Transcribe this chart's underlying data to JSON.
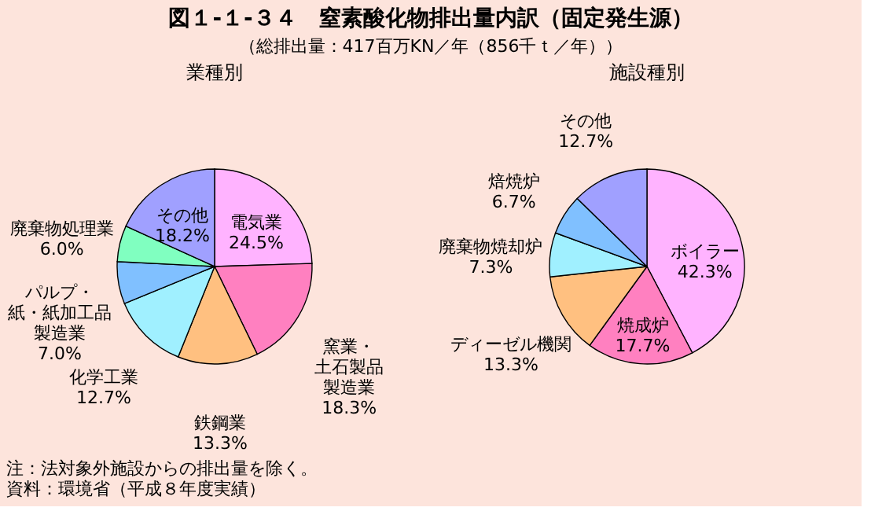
{
  "chart_data": [
    {
      "type": "other",
      "title": "図１-１-３４　窒素酸化物排出量内訳（固定発生源）",
      "subtitle": "（総排出量：417百万KN／年（856千ｔ／年））",
      "annotations": [
        "注：法対象外施設からの排出量を除く。",
        "資料：環境省（平成８年度実績）"
      ]
    },
    {
      "type": "pie",
      "title": "業種別",
      "categories": [
        "電気業",
        "窯業・土石製品製造業",
        "鉄鋼業",
        "化学工業",
        "パルプ・紙・紙加工品製造業",
        "廃棄物処理業",
        "その他"
      ],
      "values": [
        24.5,
        18.3,
        13.3,
        12.7,
        7.0,
        6.0,
        18.2
      ],
      "value_labels": [
        "24.5%",
        "18.3%",
        "13.3%",
        "12.7%",
        "7.0%",
        "6.0%",
        "18.2%"
      ],
      "colors": [
        "#ffb3ff",
        "#ff80c0",
        "#ffc080",
        "#a0f0ff",
        "#80c0ff",
        "#80ffc0",
        "#a0a0ff"
      ]
    },
    {
      "type": "pie",
      "title": "施設種別",
      "categories": [
        "ボイラー",
        "焼成炉",
        "ディーゼル機関",
        "廃棄物焼却炉",
        "焙焼炉",
        "その他"
      ],
      "values": [
        42.3,
        17.7,
        13.3,
        7.3,
        6.7,
        12.7
      ],
      "value_labels": [
        "42.3%",
        "17.7%",
        "13.3%",
        "7.3%",
        "6.7%",
        "12.7%"
      ],
      "colors": [
        "#ffb3ff",
        "#ff80c0",
        "#ffc080",
        "#a0f0ff",
        "#80c0ff",
        "#a0a0ff"
      ]
    }
  ]
}
